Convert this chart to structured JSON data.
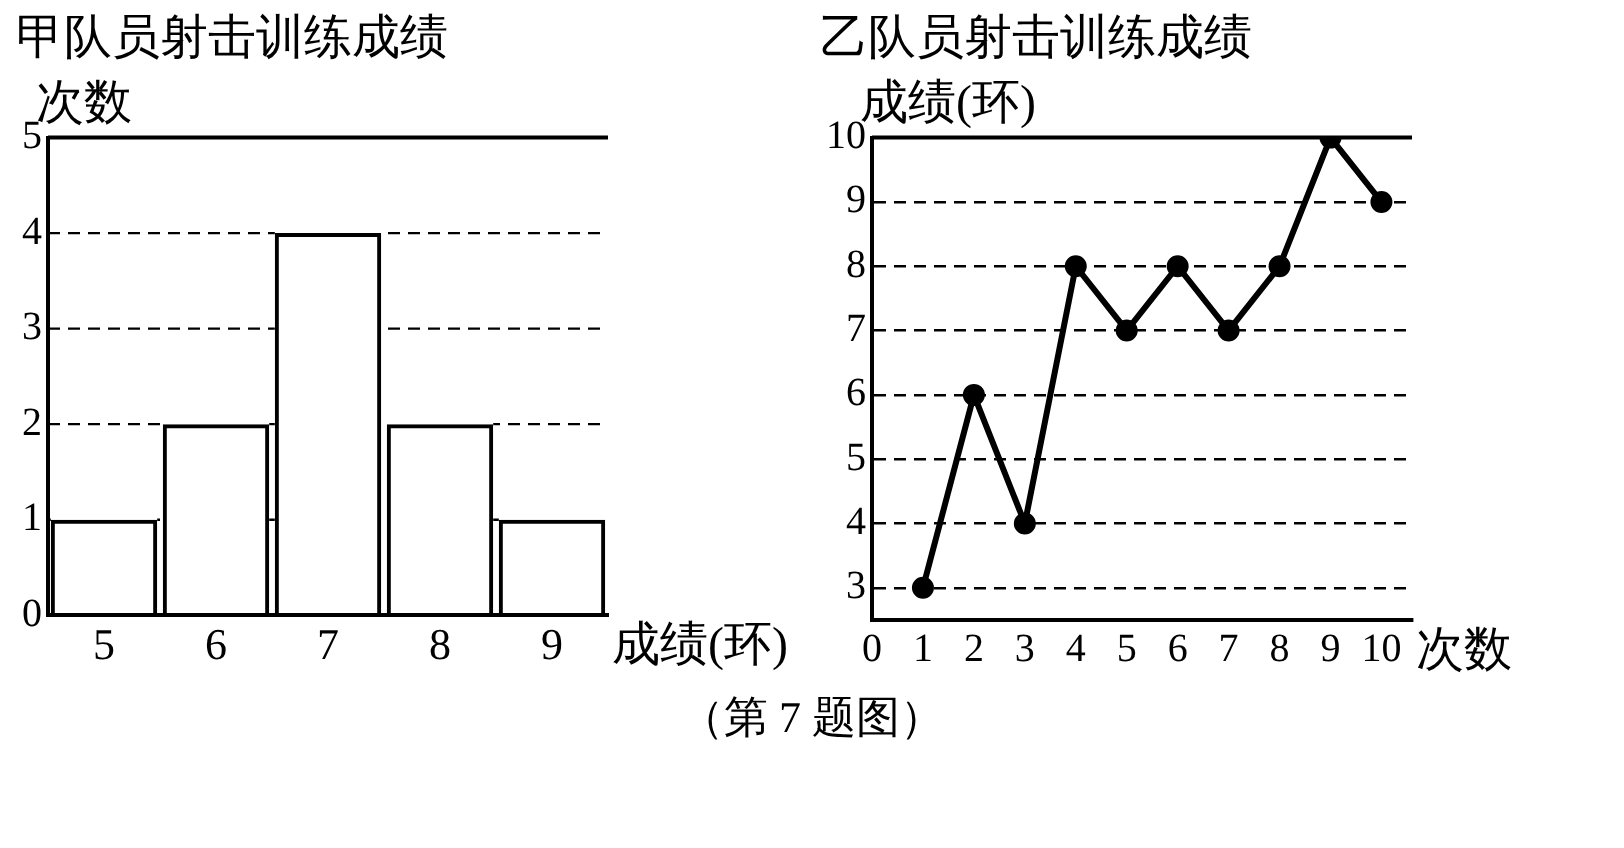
{
  "chart_data": [
    {
      "type": "bar",
      "title": "甲队员射击训练成绩",
      "xlabel": "成绩(环)",
      "ylabel": "次数",
      "categories": [
        "5",
        "6",
        "7",
        "8",
        "9"
      ],
      "values": [
        1,
        2,
        4,
        2,
        1
      ],
      "color": "#000000",
      "ylim": [
        0,
        5
      ],
      "yticks": [
        0,
        1,
        2,
        3,
        4,
        5
      ],
      "grid": "y",
      "legend": false
    },
    {
      "type": "line",
      "title": "乙队员射击训练成绩",
      "xlabel": "次数",
      "ylabel": "成绩(环)",
      "x": [
        1,
        2,
        3,
        4,
        5,
        6,
        7,
        8,
        9,
        10
      ],
      "values": [
        3,
        6,
        4,
        8,
        7,
        8,
        7,
        8,
        10,
        9
      ],
      "color": "#000000",
      "xlim": [
        0,
        10.6
      ],
      "xticks": [
        0,
        1,
        2,
        3,
        4,
        5,
        6,
        7,
        8,
        9,
        10
      ],
      "ylim": [
        2.5,
        10
      ],
      "yticks": [
        3,
        4,
        5,
        6,
        7,
        8,
        9,
        10
      ],
      "grid": "y",
      "legend": false,
      "marker": "circle",
      "line_style": "solid",
      "annotations": [
        "（第 7 题图）"
      ]
    }
  ]
}
